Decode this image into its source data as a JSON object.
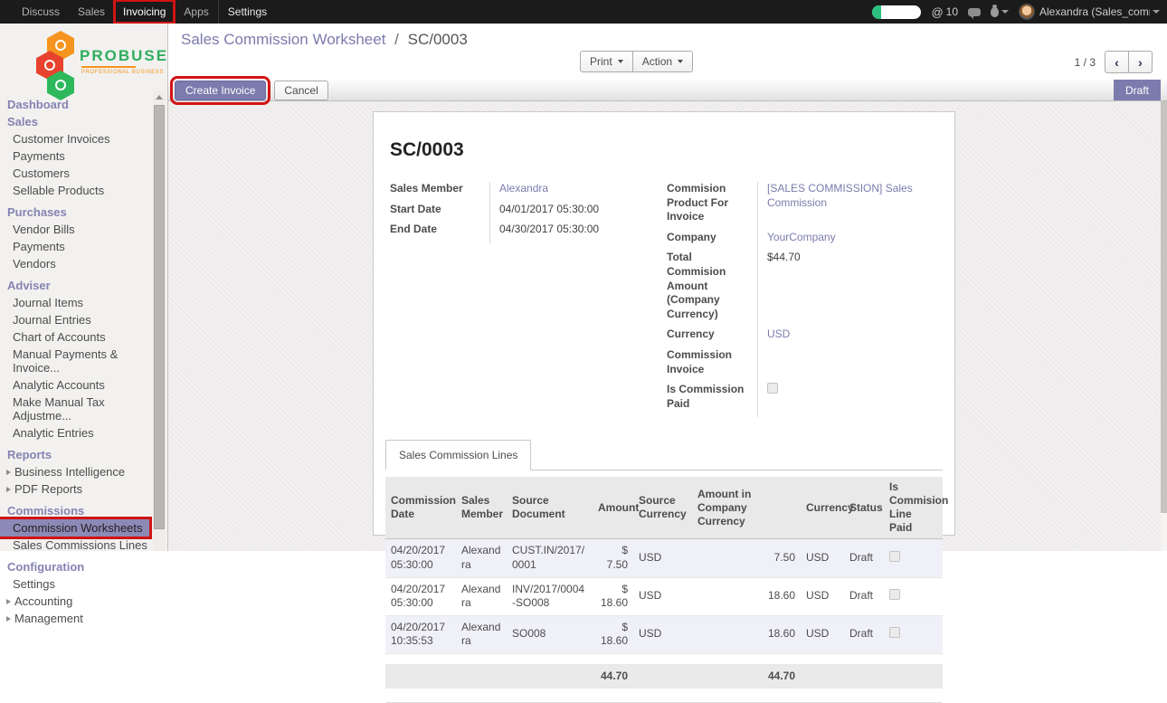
{
  "topbar": {
    "menus": [
      {
        "label": "Discuss",
        "active": false,
        "annotated": false
      },
      {
        "label": "Sales",
        "active": false,
        "annotated": false
      },
      {
        "label": "Invoicing",
        "active": true,
        "annotated": true
      },
      {
        "label": "Apps",
        "active": false,
        "annotated": false
      },
      {
        "label": "Settings",
        "active": false,
        "annotated": false
      }
    ],
    "at_symbol": "@",
    "mention_count": "10",
    "user": "Alexandra (Sales_comm.."
  },
  "sidebar": {
    "logo_title": "PROBUSE",
    "logo_subtitle": "PROFESSIONAL BUSINESS",
    "sections": [
      {
        "heading": "Dashboard",
        "items": []
      },
      {
        "heading": "Sales",
        "items": [
          {
            "label": "Customer Invoices"
          },
          {
            "label": "Payments"
          },
          {
            "label": "Customers"
          },
          {
            "label": "Sellable Products"
          }
        ]
      },
      {
        "heading": "Purchases",
        "items": [
          {
            "label": "Vendor Bills"
          },
          {
            "label": "Payments"
          },
          {
            "label": "Vendors"
          }
        ]
      },
      {
        "heading": "Adviser",
        "items": [
          {
            "label": "Journal Items"
          },
          {
            "label": "Journal Entries"
          },
          {
            "label": "Chart of Accounts"
          },
          {
            "label": "Manual Payments & Invoice..."
          },
          {
            "label": "Analytic Accounts"
          },
          {
            "label": "Make Manual Tax Adjustme..."
          },
          {
            "label": "Analytic Entries"
          }
        ]
      },
      {
        "heading": "Reports",
        "items": [
          {
            "label": "Business Intelligence",
            "arrow": true
          },
          {
            "label": "PDF Reports",
            "arrow": true
          }
        ]
      },
      {
        "heading": "Commissions",
        "items": [
          {
            "label": "Commission Worksheets",
            "selected": true,
            "annotated": true
          },
          {
            "label": "Sales Commissions Lines"
          }
        ]
      },
      {
        "heading": "Configuration",
        "items": [
          {
            "label": "Settings"
          },
          {
            "label": "Accounting",
            "arrow": true
          },
          {
            "label": "Management",
            "arrow": true
          }
        ]
      }
    ]
  },
  "breadcrumb": {
    "parent": "Sales Commission Worksheet",
    "separator": "/",
    "current": "SC/0003"
  },
  "control_panel": {
    "print_label": "Print",
    "action_label": "Action",
    "pager": "1 / 3",
    "prev": "‹",
    "next": "›"
  },
  "statusbar": {
    "create_invoice_label": "Create Invoice",
    "cancel_label": "Cancel",
    "status": "Draft"
  },
  "form": {
    "title": "SC/0003",
    "fields_left": [
      {
        "label": "Sales Member",
        "value": "Alexandra",
        "link": true
      },
      {
        "label": "Start Date",
        "value": "04/01/2017 05:30:00"
      },
      {
        "label": "End Date",
        "value": "04/30/2017 05:30:00"
      }
    ],
    "fields_right": [
      {
        "label": "Commision Product For Invoice",
        "value": "[SALES COMMISSION] Sales Commission",
        "link": true
      },
      {
        "label": "Company",
        "value": "YourCompany",
        "link": true
      },
      {
        "label": "Total Commision Amount (Company Currency)",
        "value": "$44.70"
      },
      {
        "label": "Currency",
        "value": "USD",
        "link": true
      },
      {
        "label": "Commission Invoice",
        "value": ""
      },
      {
        "label": "Is Commission Paid",
        "checkbox": true,
        "checked": false
      }
    ],
    "tab_label": "Sales Commission Lines",
    "table": {
      "headers": [
        "Commission Date",
        "Sales Member",
        "Source Document",
        "Amount",
        "Source Currency",
        "Amount in Company Currency",
        "Currency",
        "Status",
        "Is Commision Line Paid"
      ],
      "rows": [
        {
          "date": "04/20/2017 05:30:00",
          "member": "Alexandra",
          "document": "CUST.IN/2017/0001",
          "amount": "$ 7.50",
          "source_currency": "USD",
          "amount_company": "7.50",
          "currency": "USD",
          "status": "Draft",
          "paid": false
        },
        {
          "date": "04/20/2017 05:30:00",
          "member": "Alexandra",
          "document": "INV/2017/0004-SO008",
          "amount": "$ 18.60",
          "source_currency": "USD",
          "amount_company": "18.60",
          "currency": "USD",
          "status": "Draft",
          "paid": false
        },
        {
          "date": "04/20/2017 10:35:53",
          "member": "Alexandra",
          "document": "SO008",
          "amount": "$ 18.60",
          "source_currency": "USD",
          "amount_company": "18.60",
          "currency": "USD",
          "status": "Draft",
          "paid": false
        }
      ],
      "totals": {
        "amount": "44.70",
        "amount_company": "44.70"
      }
    }
  },
  "colors": {
    "accent": "#7c7bad",
    "annotation": "#d01414",
    "link": "#7c7bad",
    "status_badge": "#7c7bad"
  }
}
